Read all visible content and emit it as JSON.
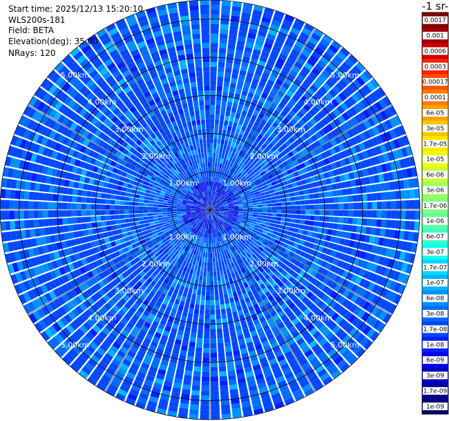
{
  "info": {
    "start_time": "Start time: 2025/12/13 15:20:10",
    "instrument": "WLS200s-181",
    "field": "Field: BETA",
    "elevation": "Elevation(deg): 35.00",
    "nrays": "NRays: 120"
  },
  "chart_data": {
    "type": "heatmap",
    "projection": "polar-ppi",
    "field": "BETA",
    "elevation_deg": 35.0,
    "n_rays": 120,
    "range_max_km": 5.5,
    "range_ring_labels": [
      "1.00km",
      "2.00km",
      "3.00km",
      "4.00km",
      "5.00km"
    ],
    "range_rings_km": [
      1,
      2,
      3,
      4,
      5
    ],
    "colorbar": {
      "title": "-1 sr-",
      "labels": [
        "0.0017",
        "0.001",
        "0.0006",
        "0.0003",
        "0.00017",
        "0.0001",
        "6e-05",
        "3e-05",
        "1.7e-05",
        "1e-05",
        "6e-06",
        "3e-06",
        "1.7e-06",
        "1e-06",
        "6e-07",
        "3e-07",
        "1.7e-07",
        "1e-07",
        "6e-08",
        "3e-08",
        "1.7e-08",
        "1e-08",
        "6e-09",
        "3e-09",
        "1.7e-09",
        "1e-09"
      ],
      "colors": [
        "#800000",
        "#a00000",
        "#cc0000",
        "#ff2000",
        "#ff5000",
        "#ff7c00",
        "#ffa000",
        "#ffc400",
        "#ffe800",
        "#f0ff10",
        "#c8ff38",
        "#a0ff60",
        "#80ff80",
        "#60ffa0",
        "#38ffc8",
        "#10ffef",
        "#00d8ff",
        "#00b4ff",
        "#0090ff",
        "#006cff",
        "#0048ff",
        "#0020ff",
        "#0000e8",
        "#0000c0",
        "#000098",
        "#000070"
      ]
    },
    "dominant_value_range": [
      "1e-08",
      "6e-08"
    ],
    "grid": true
  }
}
